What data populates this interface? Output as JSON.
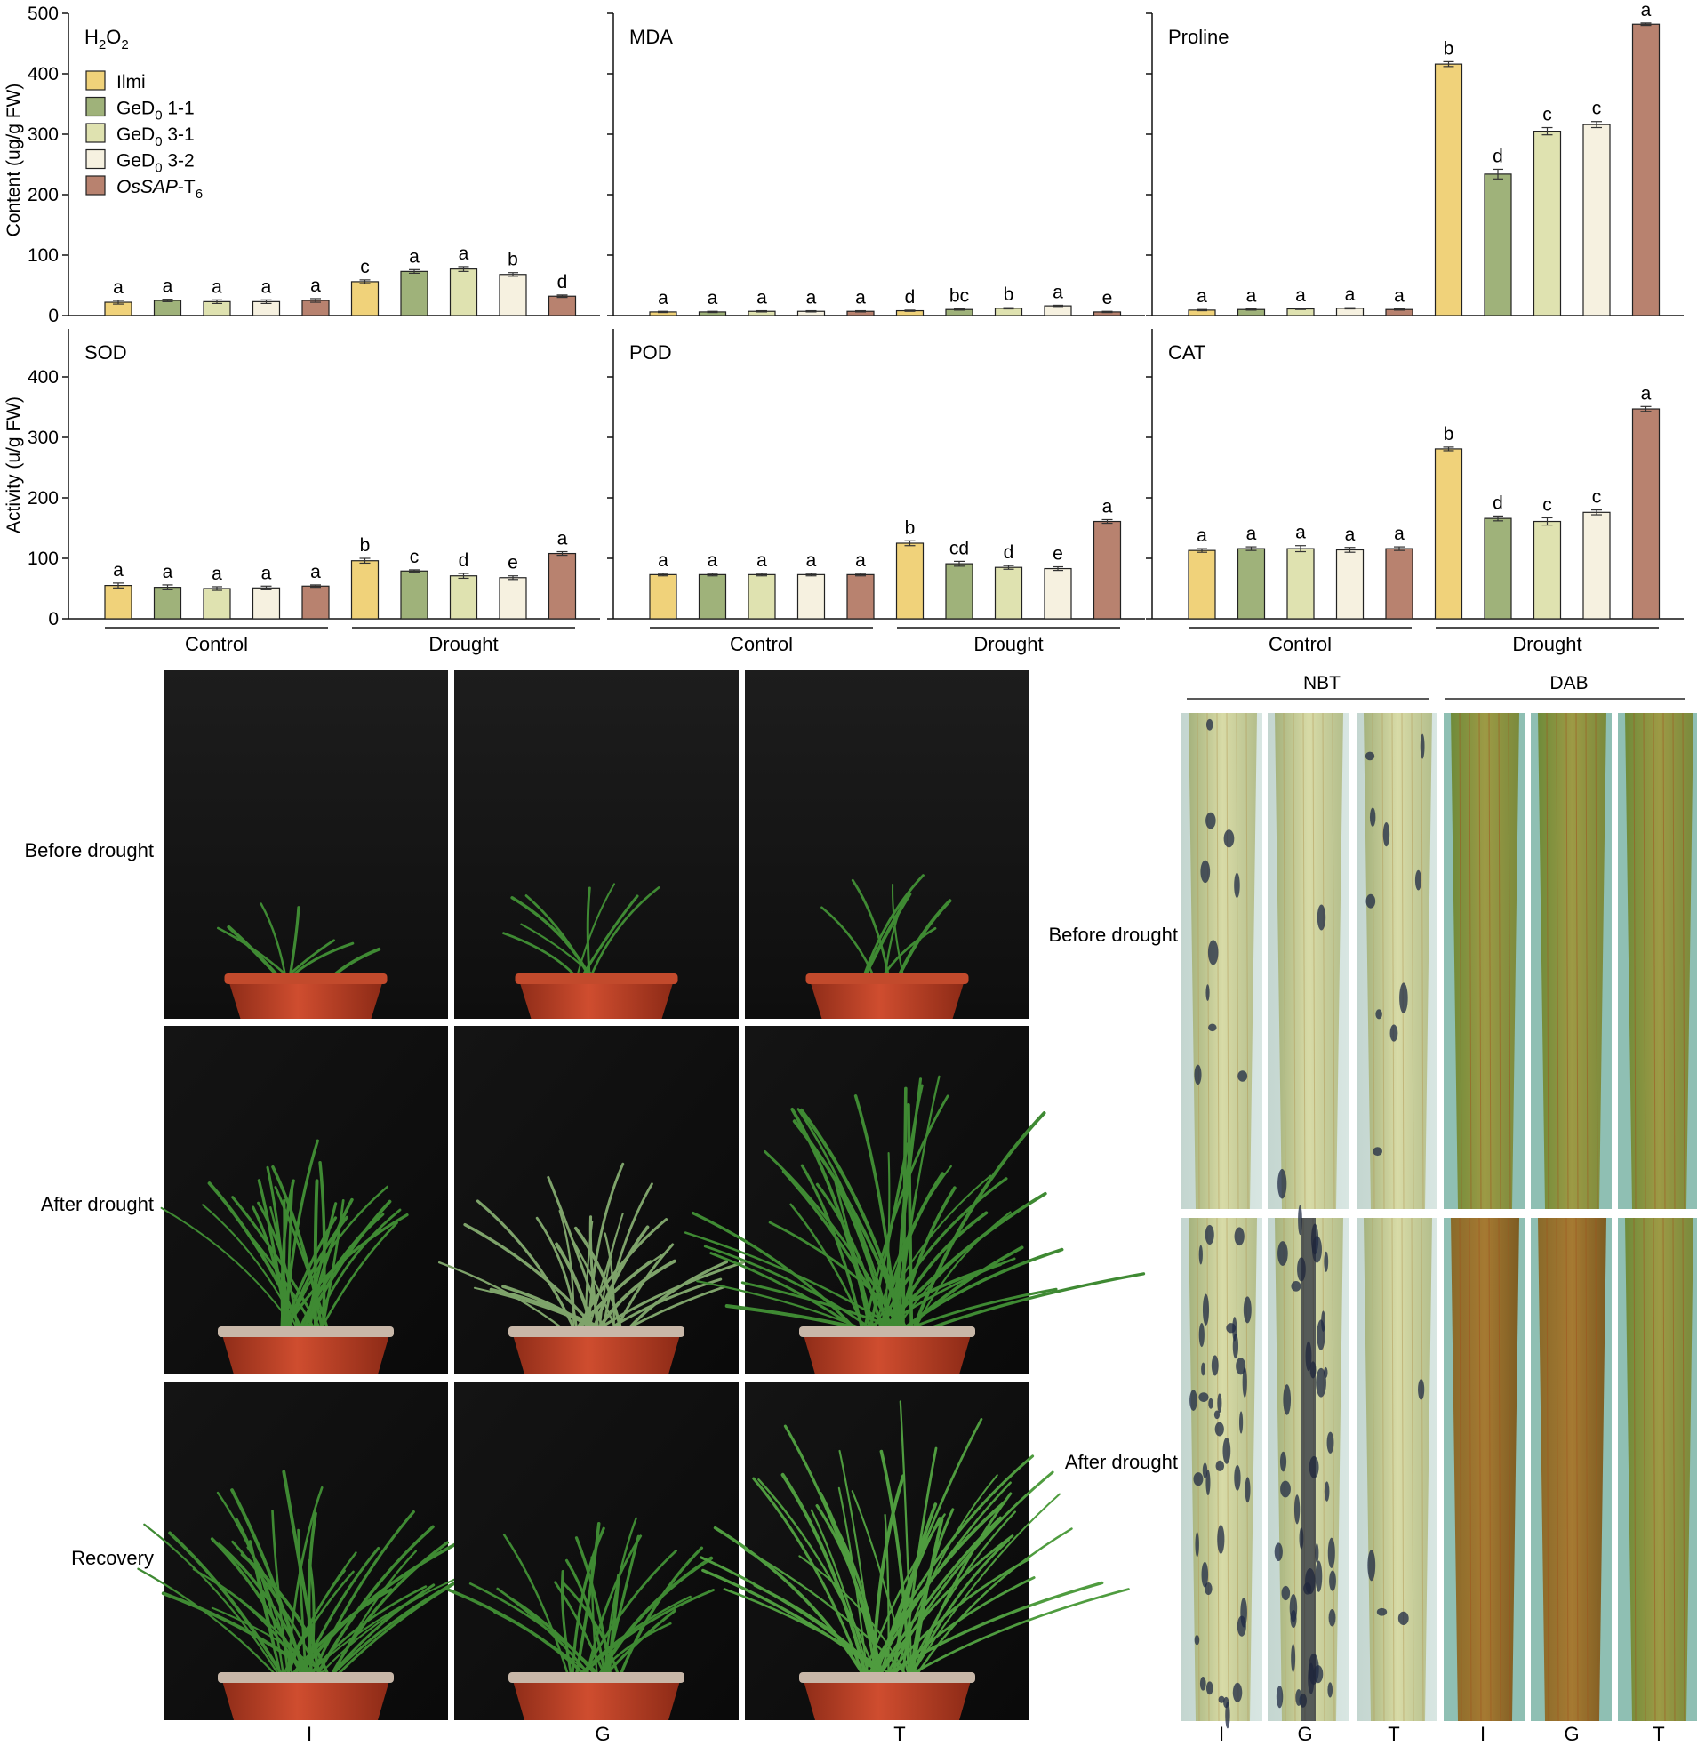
{
  "legend": {
    "entries": [
      {
        "label": "Ilmi",
        "color": "#f0d27a"
      },
      {
        "label": "GeD",
        "sub": "0",
        "tail": " 1-1",
        "color": "#9fb27a"
      },
      {
        "label": "GeD",
        "sub": "0",
        "tail": " 3-1",
        "color": "#dfe2b0"
      },
      {
        "label": "GeD",
        "sub": "0",
        "tail": " 3-2",
        "color": "#f6f1e0"
      },
      {
        "label": "OsSAP",
        "italic": true,
        "tail": "-T",
        "sub": "6",
        "color": "#b8826f"
      }
    ]
  },
  "axes": {
    "top_ylabel": "Content (ug/g FW)",
    "bottom_ylabel": "Activity (u/g FW)",
    "top_ticks": [
      "0",
      "100",
      "200",
      "300",
      "400",
      "500"
    ],
    "bottom_ticks": [
      "0",
      "100",
      "200",
      "300",
      "400"
    ],
    "groups": [
      "Control",
      "Drought"
    ]
  },
  "chart_data": [
    {
      "type": "bar",
      "title": "H2O2",
      "row": 0,
      "col": 0,
      "ylim": [
        0,
        500
      ],
      "values": [
        22,
        25,
        23,
        23,
        25,
        56,
        73,
        77,
        68,
        32
      ],
      "errors": [
        3,
        2,
        3,
        3,
        3,
        3,
        3,
        4,
        3,
        2
      ],
      "letters": [
        "a",
        "a",
        "a",
        "a",
        "a",
        "c",
        "a",
        "a",
        "b",
        "d"
      ]
    },
    {
      "type": "bar",
      "title": "MDA",
      "row": 0,
      "col": 1,
      "ylim": [
        0,
        500
      ],
      "values": [
        6,
        6,
        7,
        7,
        7,
        8,
        10,
        12,
        16,
        6
      ],
      "errors": [
        1,
        1,
        1,
        1,
        1,
        1,
        1,
        1,
        1,
        1
      ],
      "letters": [
        "a",
        "a",
        "a",
        "a",
        "a",
        "d",
        "bc",
        "b",
        "a",
        "e"
      ]
    },
    {
      "type": "bar",
      "title": "Proline",
      "row": 0,
      "col": 2,
      "ylim": [
        0,
        500
      ],
      "values": [
        9,
        10,
        11,
        12,
        10,
        416,
        234,
        305,
        316,
        482
      ],
      "errors": [
        1,
        1,
        1,
        1,
        1,
        4,
        8,
        6,
        5,
        2
      ],
      "letters": [
        "a",
        "a",
        "a",
        "a",
        "a",
        "b",
        "d",
        "c",
        "c",
        "a"
      ]
    },
    {
      "type": "bar",
      "title": "SOD",
      "row": 1,
      "col": 0,
      "ylim": [
        0,
        500
      ],
      "values": [
        55,
        52,
        50,
        51,
        54,
        96,
        79,
        71,
        68,
        108
      ],
      "errors": [
        4,
        4,
        3,
        3,
        2,
        4,
        2,
        4,
        3,
        3
      ],
      "letters": [
        "a",
        "a",
        "a",
        "a",
        "a",
        "b",
        "c",
        "d",
        "e",
        "a"
      ]
    },
    {
      "type": "bar",
      "title": "POD",
      "row": 1,
      "col": 1,
      "ylim": [
        0,
        500
      ],
      "values": [
        73,
        73,
        73,
        73,
        73,
        125,
        91,
        85,
        83,
        161
      ],
      "errors": [
        2,
        2,
        2,
        2,
        2,
        4,
        4,
        3,
        3,
        3
      ],
      "letters": [
        "a",
        "a",
        "a",
        "a",
        "a",
        "b",
        "cd",
        "d",
        "e",
        "a"
      ]
    },
    {
      "type": "bar",
      "title": "CAT",
      "row": 1,
      "col": 2,
      "ylim": [
        0,
        500
      ],
      "values": [
        113,
        116,
        116,
        114,
        116,
        281,
        166,
        161,
        176,
        347
      ],
      "errors": [
        3,
        3,
        5,
        4,
        3,
        3,
        4,
        6,
        4,
        4
      ],
      "letters": [
        "a",
        "a",
        "a",
        "a",
        "a",
        "b",
        "d",
        "c",
        "c",
        "a"
      ]
    }
  ],
  "photos": {
    "row_labels": [
      "Before drought",
      "After drought",
      "Recovery"
    ],
    "col_labels": [
      "I",
      "G",
      "T"
    ]
  },
  "leaves": {
    "group_labels": [
      "NBT",
      "DAB"
    ],
    "row_labels": [
      "Before drought",
      "After drought"
    ],
    "col_labels": [
      "I",
      "G",
      "T",
      "I",
      "G",
      "T"
    ]
  },
  "colors": {
    "background": "#ffffff",
    "axis": "#111111",
    "plant": "#3f8a33",
    "pot": "#b8422a",
    "photo_bg": "#151515"
  }
}
